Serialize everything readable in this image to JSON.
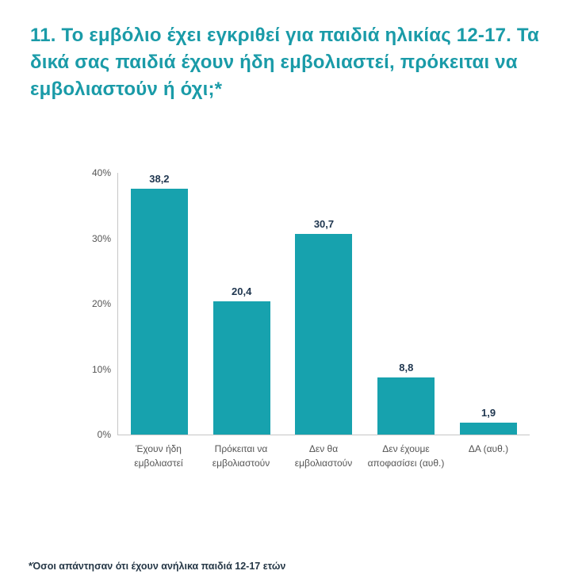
{
  "title": "11. Το εμβόλιο έχει εγκριθεί για παιδιά ηλικίας 12-17. Τα δικά σας παιδιά έχουν ήδη εμβολιαστεί, πρόκειται να εμβολιαστούν ή όχι;*",
  "footnote": "*Όσοι απάντησαν ότι έχουν ανήλικα παιδιά 12-17 ετών",
  "colors": {
    "title": "#1a9ba8",
    "bar": "#17a2ae",
    "value_label": "#203750",
    "axis_text": "#555555",
    "footnote": "#253746"
  },
  "chart_data": {
    "type": "bar",
    "title": "11. Το εμβόλιο έχει εγκριθεί για παιδιά ηλικίας 12-17. Τα δικά σας παιδιά έχουν ήδη εμβολιαστεί, πρόκειται να εμβολιαστούν ή όχι;*",
    "categories": [
      "Έχουν ήδη εμβολιαστεί",
      "Πρόκειται να εμβολιαστούν",
      "Δεν θα εμβολιαστούν",
      "Δεν έχουμε αποφασίσει (αυθ.)",
      "ΔΑ (αυθ.)"
    ],
    "values": [
      38.2,
      20.4,
      30.7,
      8.8,
      1.9
    ],
    "value_labels": [
      "38,2",
      "20,4",
      "30,7",
      "8,8",
      "1,9"
    ],
    "xlabel": "",
    "ylabel": "",
    "ylim": [
      0,
      40
    ],
    "yticks": [
      0,
      10,
      20,
      30,
      40
    ],
    "ytick_labels": [
      "0%",
      "10%",
      "20%",
      "30%",
      "40%"
    ],
    "grid": false,
    "legend": false,
    "bar_color": "#17a2ae",
    "annotation": "*Όσοι απάντησαν ότι έχουν ανήλικα παιδιά 12-17 ετών"
  }
}
